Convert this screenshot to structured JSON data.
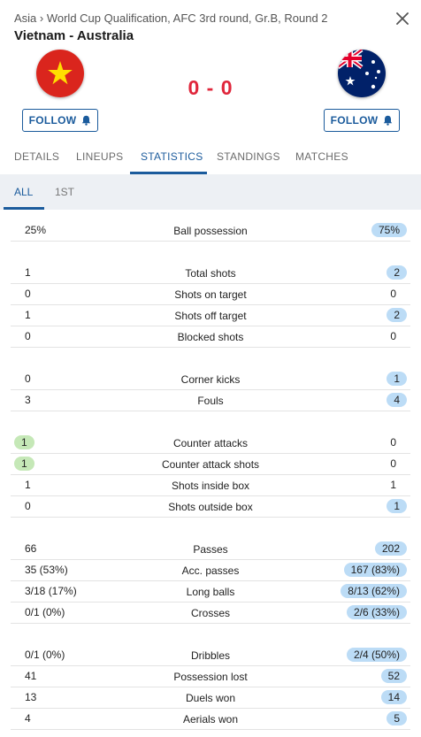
{
  "header": {
    "breadcrumb": "Asia › World Cup Qualification, AFC 3rd round, Gr.B, Round 2",
    "title": "Vietnam - Australia",
    "score": "0 - 0",
    "follow_label": "FOLLOW"
  },
  "colors": {
    "accent": "#1b5b9c",
    "score": "#e0263b",
    "home_win": "#c5e8b7",
    "away_win": "#bcdcf6"
  },
  "tabs": [
    "DETAILS",
    "LINEUPS",
    "STATISTICS",
    "STANDINGS",
    "MATCHES"
  ],
  "active_tab": "STATISTICS",
  "subtabs": [
    "ALL",
    "1ST"
  ],
  "active_subtab": "ALL",
  "stats": [
    {
      "label": "Ball possession",
      "home": "25%",
      "away": "75%",
      "winner": "away"
    },
    {
      "label": "Total shots",
      "home": "1",
      "away": "2",
      "winner": "away"
    },
    {
      "label": "Shots on target",
      "home": "0",
      "away": "0",
      "winner": "none"
    },
    {
      "label": "Shots off target",
      "home": "1",
      "away": "2",
      "winner": "away"
    },
    {
      "label": "Blocked shots",
      "home": "0",
      "away": "0",
      "winner": "none"
    },
    {
      "label": "Corner kicks",
      "home": "0",
      "away": "1",
      "winner": "away"
    },
    {
      "label": "Fouls",
      "home": "3",
      "away": "4",
      "winner": "away"
    },
    {
      "label": "Counter attacks",
      "home": "1",
      "away": "0",
      "winner": "home"
    },
    {
      "label": "Counter attack shots",
      "home": "1",
      "away": "0",
      "winner": "home"
    },
    {
      "label": "Shots inside box",
      "home": "1",
      "away": "1",
      "winner": "none"
    },
    {
      "label": "Shots outside box",
      "home": "0",
      "away": "1",
      "winner": "away"
    },
    {
      "label": "Passes",
      "home": "66",
      "away": "202",
      "winner": "away"
    },
    {
      "label": "Acc. passes",
      "home": "35 (53%)",
      "away": "167 (83%)",
      "winner": "away"
    },
    {
      "label": "Long balls",
      "home": "3/18 (17%)",
      "away": "8/13 (62%)",
      "winner": "away"
    },
    {
      "label": "Crosses",
      "home": "0/1 (0%)",
      "away": "2/6 (33%)",
      "winner": "away"
    },
    {
      "label": "Dribbles",
      "home": "0/1 (0%)",
      "away": "2/4 (50%)",
      "winner": "away"
    },
    {
      "label": "Possession lost",
      "home": "41",
      "away": "52",
      "winner": "away"
    },
    {
      "label": "Duels won",
      "home": "13",
      "away": "14",
      "winner": "away"
    },
    {
      "label": "Aerials won",
      "home": "4",
      "away": "5",
      "winner": "away"
    }
  ]
}
